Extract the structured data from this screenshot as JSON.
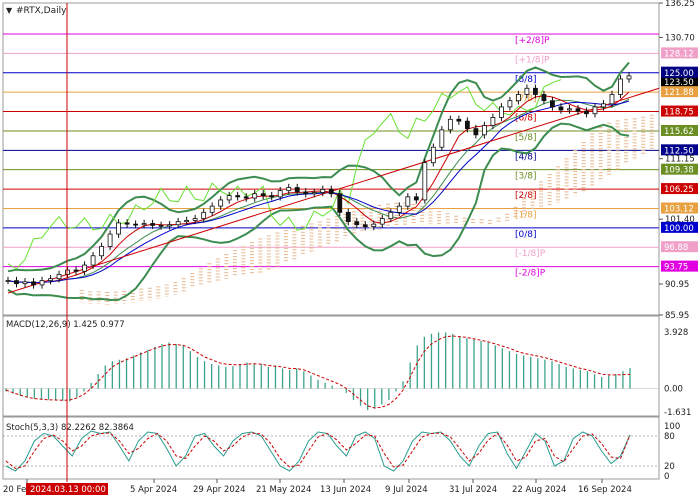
{
  "chart_data": [
    {
      "type": "candlestick",
      "title": "#RTX,Daily",
      "ylim": [
        85.95,
        136.25
      ],
      "y_ticks": [
        136.25,
        130.7,
        128.12,
        125.0,
        123.5,
        121.88,
        118.75,
        115.62,
        112.5,
        111.15,
        109.38,
        106.25,
        103.12,
        101.4,
        100.0,
        96.88,
        93.75,
        90.95,
        85.95
      ],
      "x_ticks": [
        "20 Feb 2024",
        "5 Apr 2024",
        "29 Apr 2024",
        "21 May 2024",
        "13 Jun 2024",
        "9 Jul 2024",
        "31 Jul 2024",
        "22 Aug 2024",
        "16 Sep 2024"
      ],
      "cursor_label": "2024.03.13 00:00",
      "current_price": 125.0,
      "murrey_levels": [
        {
          "label": "[+2/8]P",
          "value": 131.25,
          "color": "#e000e0"
        },
        {
          "label": "[+1/8]P",
          "value": 128.12,
          "color": "#f0a0c8"
        },
        {
          "label": "[8/8]",
          "value": 125.0,
          "color": "#0000cc"
        },
        {
          "label": "[7/8]",
          "value": 121.88,
          "color": "#e8a040"
        },
        {
          "label": "[6/8]",
          "value": 118.75,
          "color": "#cc0000"
        },
        {
          "label": "[5/8]",
          "value": 115.62,
          "color": "#6b8e23"
        },
        {
          "label": "[4/8]",
          "value": 112.5,
          "color": "#00008b"
        },
        {
          "label": "[3/8]",
          "value": 109.38,
          "color": "#6b8e23"
        },
        {
          "label": "[2/8]",
          "value": 106.25,
          "color": "#cc0000"
        },
        {
          "label": "[1/8]",
          "value": 103.12,
          "color": "#e8a040"
        },
        {
          "label": "[0/8]",
          "value": 100.0,
          "color": "#0000cc"
        },
        {
          "label": "[-1/8]P",
          "value": 96.88,
          "color": "#f0a0c8"
        },
        {
          "label": "[-2/8]P",
          "value": 93.75,
          "color": "#e000e0"
        }
      ],
      "price_series": [
        91.5,
        91.0,
        91.3,
        90.8,
        91.5,
        91.8,
        92.5,
        93.2,
        93.0,
        94.0,
        95.5,
        97.0,
        99.0,
        100.8,
        100.6,
        100.5,
        100.7,
        100.4,
        100.3,
        100.5,
        101.0,
        101.2,
        101.5,
        102.5,
        103.5,
        104.5,
        105.2,
        105.0,
        104.8,
        105.5,
        105.2,
        105.0,
        106.0,
        106.5,
        105.8,
        105.5,
        105.7,
        106.2,
        105.5,
        102.5,
        101.0,
        100.5,
        100.2,
        100.6,
        101.5,
        102.5,
        103.5,
        105.0,
        104.5,
        110.5,
        113.0,
        115.8,
        117.5,
        117.2,
        116.0,
        115.0,
        116.5,
        117.8,
        119.5,
        120.5,
        121.5,
        122.5,
        121.5,
        120.5,
        119.5,
        119.0,
        119.2,
        118.8,
        118.4,
        119.5,
        120.0,
        121.5,
        124.0,
        124.5
      ],
      "macd": {
        "label": "MACD(12,26,9) 1.425 0.977",
        "ylim": [
          -1.631,
          3.928
        ],
        "ticks": [
          3.928,
          0.0,
          -1.631
        ],
        "histogram": [
          -0.2,
          -0.35,
          -0.5,
          -0.6,
          -0.7,
          -0.75,
          -0.78,
          -0.8,
          -0.85,
          -0.9,
          -0.6,
          -0.2,
          0.4,
          1.0,
          1.6,
          1.9,
          2.0,
          2.1,
          2.3,
          2.5,
          2.7,
          2.9,
          3.1,
          3.2,
          3.1,
          3.0,
          2.6,
          2.2,
          1.9,
          1.7,
          1.6,
          1.5,
          1.55,
          1.7,
          1.8,
          1.75,
          1.7,
          1.5,
          1.6,
          1.4,
          1.3,
          1.4,
          1.2,
          0.9,
          0.6,
          0.4,
          0.2,
          0.0,
          -0.3,
          -0.8,
          -1.2,
          -1.5,
          -1.4,
          -1.1,
          -0.8,
          -0.2,
          0.5,
          1.8,
          3.0,
          3.6,
          3.8,
          3.9,
          3.9,
          3.8,
          3.6,
          3.5,
          3.4,
          3.3,
          3.2,
          3.0,
          2.8,
          2.6,
          2.4,
          2.3,
          2.2,
          2.1,
          2.0,
          1.9,
          1.7,
          1.5,
          1.4,
          1.3,
          1.2,
          1.0,
          0.8,
          0.9,
          1.0,
          1.2,
          1.42
        ],
        "signal": [
          -0.1,
          -0.3,
          -0.45,
          -0.6,
          -0.7,
          -0.75,
          -0.78,
          -0.8,
          -0.82,
          -0.8,
          -0.65,
          -0.4,
          0.0,
          0.5,
          1.0,
          1.5,
          1.8,
          2.0,
          2.2,
          2.4,
          2.6,
          2.8,
          2.95,
          3.05,
          3.05,
          3.0,
          2.8,
          2.5,
          2.2,
          2.0,
          1.8,
          1.7,
          1.65,
          1.65,
          1.7,
          1.72,
          1.7,
          1.6,
          1.55,
          1.5,
          1.4,
          1.38,
          1.3,
          1.1,
          0.9,
          0.7,
          0.5,
          0.3,
          0.0,
          -0.4,
          -0.8,
          -1.2,
          -1.35,
          -1.3,
          -1.1,
          -0.7,
          -0.1,
          0.8,
          1.8,
          2.6,
          3.1,
          3.4,
          3.6,
          3.65,
          3.6,
          3.55,
          3.45,
          3.35,
          3.25,
          3.1,
          2.95,
          2.8,
          2.6,
          2.45,
          2.35,
          2.25,
          2.15,
          2.0,
          1.85,
          1.7,
          1.55,
          1.4,
          1.3,
          1.15,
          1.0,
          0.95,
          0.95,
          0.97,
          0.98
        ]
      },
      "stochastic": {
        "label": "Stoch(5,3,3) 82.2262 82.3864",
        "ylim": [
          0,
          100
        ],
        "ticks": [
          100,
          80,
          20,
          0
        ],
        "levels": [
          80,
          20
        ],
        "k": [
          20,
          10,
          30,
          70,
          85,
          80,
          60,
          40,
          75,
          90,
          85,
          88,
          60,
          30,
          70,
          88,
          85,
          55,
          20,
          40,
          80,
          85,
          60,
          40,
          70,
          85,
          88,
          80,
          50,
          20,
          10,
          30,
          70,
          88,
          85,
          60,
          40,
          80,
          88,
          75,
          20,
          10,
          30,
          70,
          88,
          85,
          88,
          70,
          40,
          20,
          60,
          85,
          88,
          45,
          15,
          50,
          85,
          70,
          20,
          30,
          75,
          88,
          80,
          50,
          25,
          40,
          82
        ],
        "d": [
          30,
          15,
          20,
          50,
          75,
          82,
          70,
          50,
          60,
          80,
          85,
          86,
          70,
          45,
          55,
          75,
          85,
          70,
          40,
          35,
          60,
          80,
          70,
          50,
          60,
          78,
          86,
          84,
          65,
          35,
          18,
          22,
          50,
          78,
          85,
          72,
          52,
          65,
          82,
          80,
          45,
          18,
          22,
          50,
          78,
          85,
          86,
          78,
          55,
          30,
          45,
          72,
          85,
          62,
          30,
          38,
          70,
          75,
          40,
          28,
          55,
          80,
          84,
          65,
          38,
          35,
          82
        ]
      }
    }
  ]
}
